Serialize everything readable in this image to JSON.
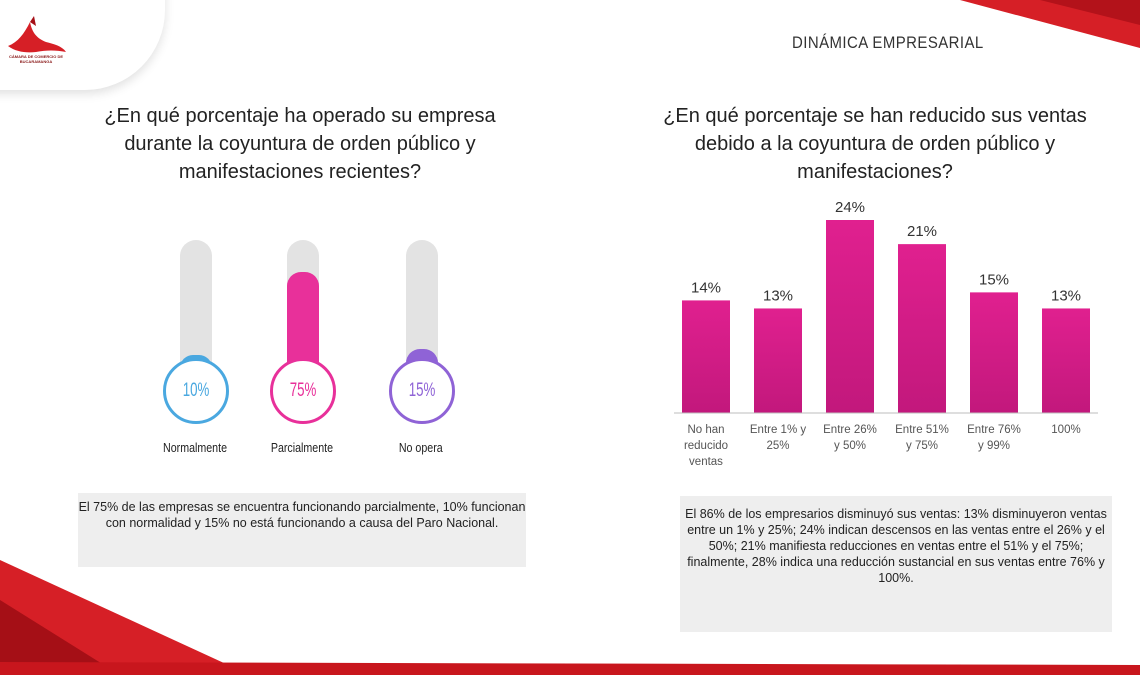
{
  "logo": {
    "caption": "CÁMARA DE COMERCIO DE BUCARAMANGA"
  },
  "header": {
    "section_title": "DINÁMICA EMPRESARIAL"
  },
  "left_panel": {
    "question": "¿En qué porcentaje ha operado su empresa durante la coyuntura de orden público y manifestaciones recientes?",
    "thermometers": [
      {
        "label": "Normalmente",
        "percent_text": "10%",
        "value": 10,
        "color": "#4aa8e0"
      },
      {
        "label": "Parcialmente",
        "percent_text": "75%",
        "value": 75,
        "color": "#e8309a"
      },
      {
        "label": "No opera",
        "percent_text": "15%",
        "value": 15,
        "color": "#8f63d6"
      }
    ],
    "note": "El 75% de las empresas se encuentra funcionando parcialmente, 10% funcionan con normalidad y 15% no está funcionando a causa del Paro Nacional."
  },
  "right_panel": {
    "question": "¿En qué porcentaje se han reducido sus ventas debido a la coyuntura de orden público y manifestaciones?",
    "note": "El 86% de los empresarios disminuyó sus ventas: 13% disminuyeron ventas entre un 1% y 25%; 24% indican descensos en las ventas entre el 26% y el 50%; 21% manifiesta reducciones en ventas entre el 51% y el 75%; finalmente, 28% indica una reducción sustancial en sus ventas entre 76% y 100%."
  },
  "chart_data": {
    "type": "bar",
    "categories": [
      "No han reducido ventas",
      "Entre 1% y 25%",
      "Entre 26% y 50%",
      "Entre 51% y 75%",
      "Entre 76% y 99%",
      "100%"
    ],
    "category_lines": [
      [
        "No han",
        "reducido",
        "ventas"
      ],
      [
        "Entre 1% y",
        "25%"
      ],
      [
        "Entre 26%",
        "y 50%"
      ],
      [
        "Entre 51%",
        "y 75%"
      ],
      [
        "Entre 76%",
        "y 99%"
      ],
      [
        "100%"
      ]
    ],
    "values": [
      14,
      13,
      24,
      21,
      15,
      13
    ],
    "data_labels": [
      "14%",
      "13%",
      "24%",
      "21%",
      "15%",
      "13%"
    ],
    "ylim": [
      0,
      24
    ],
    "grid": false,
    "bar_color_top": "#e0208f",
    "bar_color_bottom": "#c2187c"
  },
  "colors": {
    "brand_red": "#d6191f",
    "note_background": "#eeeeee"
  }
}
